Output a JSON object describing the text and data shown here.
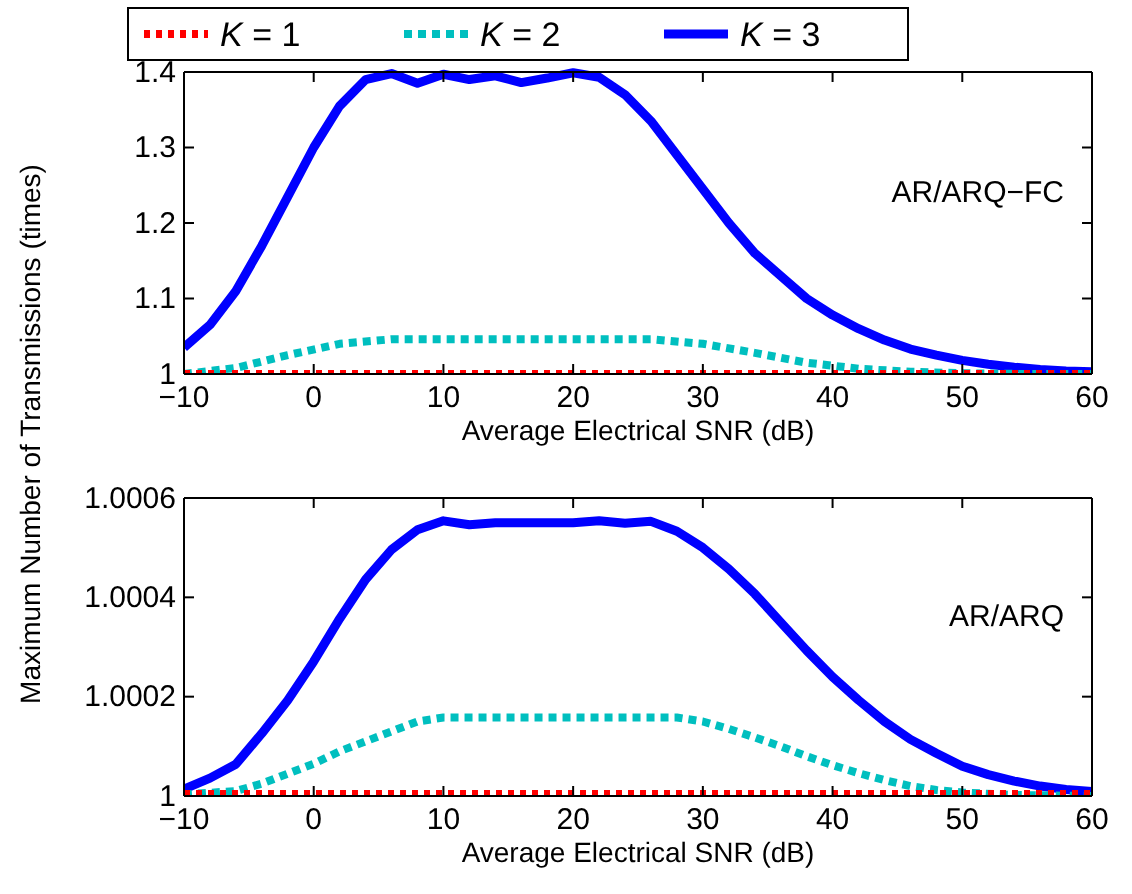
{
  "chart_data": [
    {
      "type": "line",
      "xlabel": "Average Electrical SNR (dB)",
      "ylabel": "Maximum Number of Transmissions (times)",
      "annotations": [
        "AR/ARQ−FC"
      ],
      "legend": "top",
      "grid": false,
      "xlim": [
        -10,
        60
      ],
      "xticks": [
        {
          "value": -10,
          "label": "−10"
        },
        0,
        10,
        20,
        30,
        40,
        50,
        60
      ],
      "ylim": [
        1,
        1.4
      ],
      "yticks": [
        1,
        1.1,
        1.2,
        1.3,
        1.4
      ],
      "series": [
        {
          "name": "K = 1",
          "color": "#ff0000",
          "line_style": "dashed",
          "x": [
            -10,
            60
          ],
          "values": [
            1,
            1
          ]
        },
        {
          "name": "K = 2",
          "color": "#00bfbf",
          "line_style": "dotted",
          "x": [
            -10,
            -6,
            -2,
            2,
            6,
            10,
            14,
            18,
            22,
            26,
            30,
            34,
            38,
            42,
            46,
            50,
            55,
            60
          ],
          "values": [
            1,
            1.008,
            1.025,
            1.04,
            1.046,
            1.046,
            1.046,
            1.046,
            1.046,
            1.046,
            1.04,
            1.028,
            1.015,
            1.007,
            1.003,
            1.001,
            1,
            1
          ]
        },
        {
          "name": "K = 3",
          "color": "#0000ff",
          "line_style": "solid",
          "x": [
            -10,
            -8,
            -6,
            -4,
            -2,
            0,
            2,
            4,
            6,
            8,
            10,
            12,
            14,
            16,
            18,
            20,
            22,
            24,
            26,
            28,
            30,
            32,
            34,
            36,
            38,
            40,
            42,
            44,
            46,
            48,
            50,
            52,
            54,
            56,
            58,
            60
          ],
          "values": [
            1.035,
            1.065,
            1.11,
            1.17,
            1.235,
            1.3,
            1.355,
            1.39,
            1.398,
            1.385,
            1.397,
            1.39,
            1.395,
            1.386,
            1.392,
            1.399,
            1.393,
            1.37,
            1.335,
            1.29,
            1.245,
            1.2,
            1.16,
            1.13,
            1.1,
            1.078,
            1.06,
            1.045,
            1.033,
            1.025,
            1.018,
            1.013,
            1.009,
            1.006,
            1.004,
            1.003
          ]
        }
      ]
    },
    {
      "type": "line",
      "xlabel": "Average Electrical SNR (dB)",
      "annotations": [
        "AR/ARQ"
      ],
      "grid": false,
      "xlim": [
        -10,
        60
      ],
      "xticks": [
        {
          "value": -10,
          "label": "−10"
        },
        0,
        10,
        20,
        30,
        40,
        50,
        60
      ],
      "ylim": [
        1,
        1.0006
      ],
      "yticks": [
        1,
        1.0002,
        1.0004,
        1.0006
      ],
      "series": [
        {
          "color": "#ff0000",
          "line_style": "dashed",
          "x": [
            -10,
            60
          ],
          "values": [
            1.000004,
            1.000004
          ]
        },
        {
          "color": "#00bfbf",
          "line_style": "dotted",
          "x": [
            -10,
            -6,
            -4,
            -2,
            0,
            2,
            4,
            6,
            8,
            10,
            14,
            18,
            22,
            26,
            28,
            30,
            32,
            34,
            36,
            38,
            40,
            42,
            44,
            46,
            48,
            50,
            54,
            60
          ],
          "values": [
            1.000003,
            1.00001,
            1.000025,
            1.000045,
            1.000065,
            1.00009,
            1.00011,
            1.00013,
            1.00015,
            1.000158,
            1.000158,
            1.000158,
            1.000158,
            1.000158,
            1.000158,
            1.00015,
            1.000135,
            1.000118,
            1.0001,
            1.00008,
            1.000062,
            1.000046,
            1.000032,
            1.00002,
            1.000012,
            1.000007,
            1.000002,
            1
          ]
        },
        {
          "color": "#0000ff",
          "line_style": "solid",
          "x": [
            -10,
            -8,
            -6,
            -4,
            -2,
            0,
            2,
            4,
            6,
            8,
            10,
            12,
            14,
            16,
            18,
            20,
            22,
            24,
            26,
            28,
            30,
            32,
            34,
            36,
            38,
            40,
            42,
            44,
            46,
            48,
            50,
            52,
            54,
            56,
            58,
            60
          ],
          "values": [
            1.000014,
            1.000036,
            1.000064,
            1.000126,
            1.000193,
            1.000271,
            1.000357,
            1.000436,
            1.000496,
            1.000536,
            1.000554,
            1.000546,
            1.00055,
            1.00055,
            1.00055,
            1.00055,
            1.000554,
            1.000549,
            1.000553,
            1.000533,
            1.0005,
            1.000457,
            1.000407,
            1.00035,
            1.000293,
            1.00024,
            1.000193,
            1.00015,
            1.000114,
            1.000086,
            1.00006,
            1.000043,
            1.00003,
            1.00002,
            1.000013,
            1.000009
          ]
        }
      ]
    }
  ]
}
